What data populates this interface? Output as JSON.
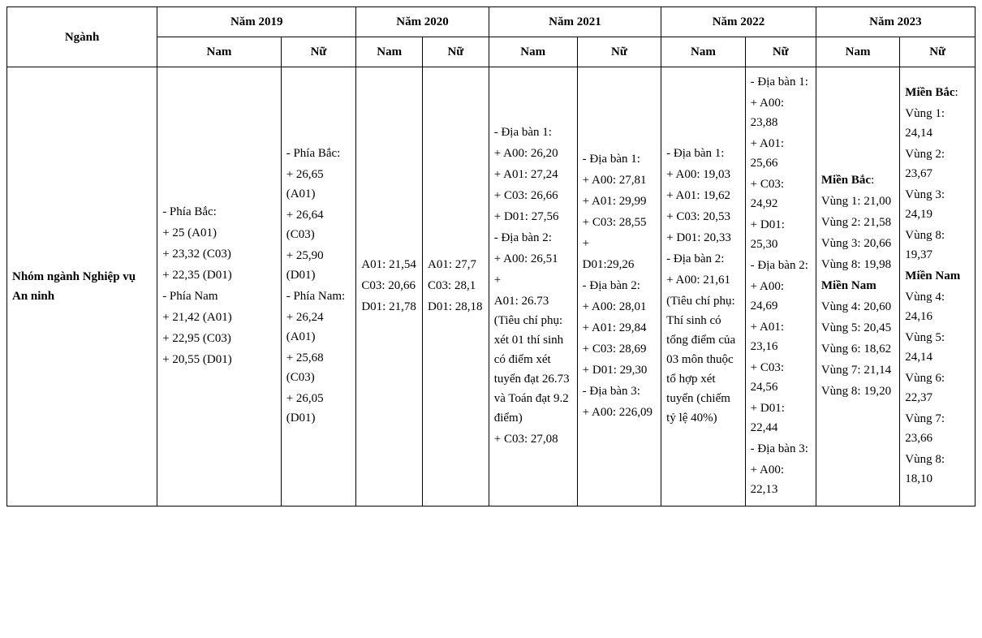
{
  "header": {
    "nganh": "Ngành",
    "years": [
      "Năm 2019",
      "Năm 2020",
      "Năm 2021",
      "Năm 2022",
      "Năm 2023"
    ],
    "gender": {
      "nam": "Nam",
      "nu": "Nữ"
    }
  },
  "row1": {
    "nganh": "Nhóm ngành Nghiệp vụ An ninh",
    "nam2019": [
      {
        "t": "- Phía Bắc:"
      },
      {
        "t": "+ 25 (A01)"
      },
      {
        "t": "+ 23,32 (C03)"
      },
      {
        "t": "+ 22,35 (D01)"
      },
      {
        "t": "- Phía Nam"
      },
      {
        "t": "+ 21,42 (A01)"
      },
      {
        "t": "+ 22,95 (C03)"
      },
      {
        "t": "+ 20,55 (D01)"
      }
    ],
    "nu2019": [
      {
        "t": "- Phía Bắc:"
      },
      {
        "t": "+ 26,65 (A01)"
      },
      {
        "t": "+ 26,64 (C03)"
      },
      {
        "t": "+ 25,90 (D01)"
      },
      {
        "t": "- Phía Nam:"
      },
      {
        "t": "+ 26,24 (A01)"
      },
      {
        "t": "+ 25,68 (C03)"
      },
      {
        "t": "+ 26,05 (D01)"
      }
    ],
    "nam2020": [
      {
        "t": "A01: 21,54"
      },
      {
        "t": "C03: 20,66"
      },
      {
        "t": "D01: 21,78"
      }
    ],
    "nu2020": [
      {
        "t": "A01: 27,7"
      },
      {
        "t": "C03: 28,1"
      },
      {
        "t": "D01: 28,18"
      }
    ],
    "nam2021": [
      {
        "t": "- Địa bàn 1:"
      },
      {
        "t": "+ A00: 26,20"
      },
      {
        "t": "+ A01: 27,24"
      },
      {
        "t": "+ C03: 26,66"
      },
      {
        "t": "+ D01: 27,56"
      },
      {
        "t": "- Địa bàn 2:"
      },
      {
        "t": "+ A00: 26,51"
      },
      {
        "t": "+"
      },
      {
        "t": "A01: 26.73 (Tiêu chí phụ: xét 01 thí sinh có điểm xét tuyển đạt 26.73 và Toán đạt 9.2 điểm)"
      },
      {
        "t": "+ C03: 27,08"
      }
    ],
    "nu2021": [
      {
        "t": "- Địa bàn 1:"
      },
      {
        "t": "+ A00: 27,81"
      },
      {
        "t": "+ A01: 29,99"
      },
      {
        "t": "+ C03: 28,55"
      },
      {
        "t": "+"
      },
      {
        "t": "D01:29,26"
      },
      {
        "t": "- Địa bàn 2:"
      },
      {
        "t": "+ A00: 28,01"
      },
      {
        "t": "+ A01: 29,84"
      },
      {
        "t": "+ C03: 28,69"
      },
      {
        "t": "+ D01: 29,30"
      },
      {
        "t": "- Địa bàn 3:"
      },
      {
        "t": "+ A00: 226,09"
      }
    ],
    "nam2022": [
      {
        "t": "- Địa bàn 1:"
      },
      {
        "t": "+ A00: 19,03"
      },
      {
        "t": "+ A01: 19,62"
      },
      {
        "t": "+ C03: 20,53"
      },
      {
        "t": "+ D01: 20,33"
      },
      {
        "t": "- Địa bàn 2:"
      },
      {
        "t": "+ A00: 21,61"
      },
      {
        "t": "(Tiêu chí phụ: Thí sinh có tổng điểm của 03 môn thuộc tổ hợp xét tuyển (chiếm tỷ lệ 40%)"
      }
    ],
    "nu2022": [
      {
        "t": "- Địa bàn 1:"
      },
      {
        "t": "+ A00: 23,88"
      },
      {
        "t": "+ A01: 25,66"
      },
      {
        "t": "+ C03: 24,92"
      },
      {
        "t": "+ D01: 25,30"
      },
      {
        "t": "- Địa bàn 2:"
      },
      {
        "t": "+ A00: 24,69"
      },
      {
        "t": "+ A01: 23,16"
      },
      {
        "t": "+ C03: 24,56"
      },
      {
        "t": "+ D01: 22,44"
      },
      {
        "t": "- Địa bàn 3:"
      },
      {
        "t": "+ A00: 22,13"
      }
    ],
    "nam2023": [
      {
        "t": "Miền Bắc:",
        "b": true,
        "suffix": ":"
      },
      {
        "t": "Vùng 1: 21,00"
      },
      {
        "t": "Vùng 2: 21,58"
      },
      {
        "t": "Vùng 3: 20,66"
      },
      {
        "t": "Vùng 8: 19,98"
      },
      {
        "t": "Miền Nam",
        "b": true
      },
      {
        "t": "Vùng 4: 20,60"
      },
      {
        "t": "Vùng 5: 20,45"
      },
      {
        "t": "Vùng 6: 18,62"
      },
      {
        "t": "Vùng 7: 21,14"
      },
      {
        "t": "Vùng 8: 19,20"
      }
    ],
    "nu2023": [
      {
        "t": "Miền Bắc:",
        "b": true,
        "suffix": ":"
      },
      {
        "t": "Vùng 1: 24,14"
      },
      {
        "t": "Vùng 2: 23,67"
      },
      {
        "t": "Vùng 3: 24,19"
      },
      {
        "t": "Vùng 8: 19,37"
      },
      {
        "t": "Miền Nam",
        "b": true
      },
      {
        "t": "Vùng 4: 24,16"
      },
      {
        "t": "Vùng 5: 24,14"
      },
      {
        "t": "Vùng 6: 22,37"
      },
      {
        "t": "Vùng 7: 23,66"
      },
      {
        "t": "Vùng 8: 18,10"
      }
    ]
  }
}
